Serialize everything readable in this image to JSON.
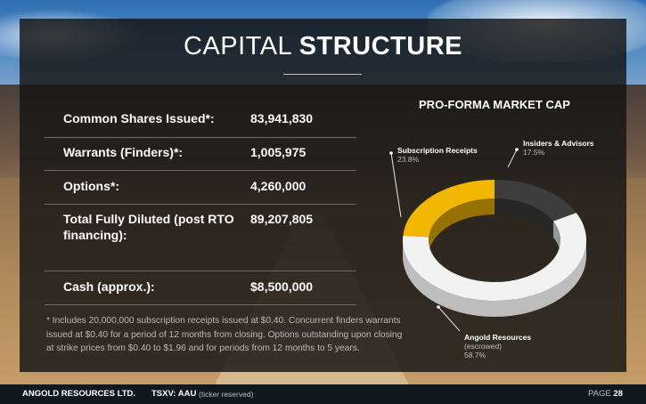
{
  "slide": {
    "title_light": "CAPITAL ",
    "title_bold": "STRUCTURE"
  },
  "capital_table": [
    {
      "label": "Common Shares Issued*:",
      "value": "83,941,830"
    },
    {
      "label": "Warrants (Finders)*:",
      "value": "1,005,975"
    },
    {
      "label": "Options*:",
      "value": "4,260,000"
    },
    {
      "label": "Total Fully Diluted (post RTO financing):",
      "value": "89,207,805"
    },
    {
      "label": "Cash (approx.):",
      "value": "$8,500,000"
    }
  ],
  "footnote": "* Includes 20,000,000 subscription receipts issued at $0.40. Concurrent finders warrants issued at $0.40 for a period of 12 months from closing. Options outstanding upon closing at strike prices from $0.40 to $1.96 and for periods from 12 months to 5 years.",
  "chart_data": {
    "type": "pie",
    "title": "PRO-FORMA MARKET CAP",
    "slices": [
      {
        "label": "Subscription Receipts",
        "sublabel": "",
        "value": 23.8,
        "value_text": "23.8%",
        "color": "#f2b705"
      },
      {
        "label": "Angold Resources",
        "sublabel": "(escrowed)",
        "value": 58.7,
        "value_text": "58.7%",
        "color": "#f2f2f2"
      },
      {
        "label": "Insiders & Advisors",
        "sublabel": "",
        "value": 17.5,
        "value_text": "17.5%",
        "color": "#3d3d3d"
      }
    ]
  },
  "footer": {
    "company": "ANGOLD RESOURCES LTD.",
    "ticker": "TSXV: AAU",
    "ticker_note": "(ticker reserved)",
    "page_label": "PAGE",
    "page_number": "28"
  },
  "colors": {
    "accent": "#f2b705",
    "panel": "#141414",
    "footer": "#101820"
  }
}
